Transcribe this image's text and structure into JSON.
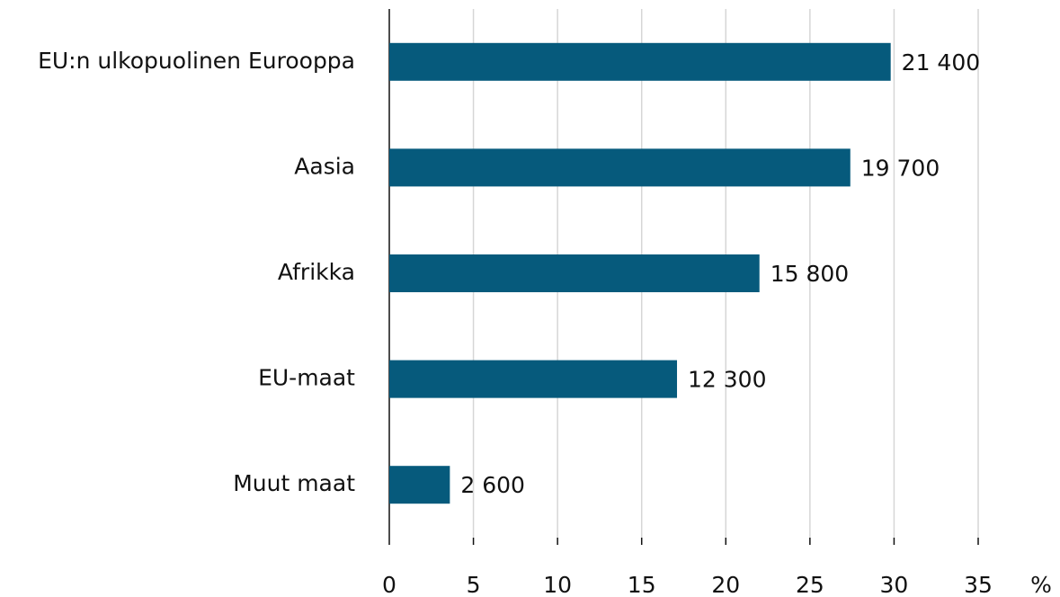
{
  "chart_data": {
    "type": "hbar",
    "categories": [
      "EU:n ulkopuolinen Eurooppa",
      "Aasia",
      "Afrikka",
      "EU-maat",
      "Muut maat"
    ],
    "values": [
      29.8,
      27.4,
      22.0,
      17.1,
      3.6
    ],
    "count_labels": [
      "21 400",
      "19 700",
      "15 800",
      "12 300",
      "2 600"
    ],
    "color": "#065a7c",
    "xlim": [
      0,
      35
    ],
    "xticks": [
      0,
      5,
      10,
      15,
      20,
      25,
      30,
      35
    ],
    "x_unit": "%",
    "grid": true
  }
}
